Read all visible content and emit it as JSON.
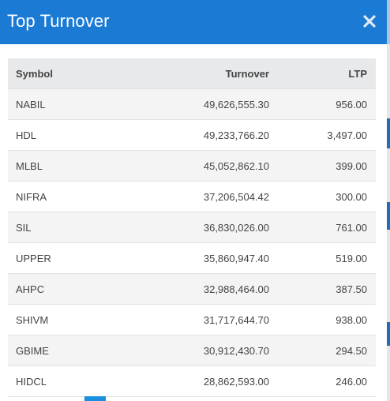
{
  "modal": {
    "title": "Top Turnover",
    "close_icon": "close-icon"
  },
  "colors": {
    "header": "#1a7ad4",
    "accent": "#1a8fdd"
  },
  "table": {
    "headers": {
      "symbol": "Symbol",
      "turnover": "Turnover",
      "ltp": "LTP"
    },
    "rows": [
      {
        "symbol": "NABIL",
        "turnover": "49,626,555.30",
        "ltp": "956.00"
      },
      {
        "symbol": "HDL",
        "turnover": "49,233,766.20",
        "ltp": "3,497.00"
      },
      {
        "symbol": "MLBL",
        "turnover": "45,052,862.10",
        "ltp": "399.00"
      },
      {
        "symbol": "NIFRA",
        "turnover": "37,206,504.42",
        "ltp": "300.00"
      },
      {
        "symbol": "SIL",
        "turnover": "36,830,026.00",
        "ltp": "761.00"
      },
      {
        "symbol": "UPPER",
        "turnover": "35,860,947.40",
        "ltp": "519.00"
      },
      {
        "symbol": "AHPC",
        "turnover": "32,988,464.00",
        "ltp": "387.50"
      },
      {
        "symbol": "SHIVM",
        "turnover": "31,717,644.70",
        "ltp": "938.00"
      },
      {
        "symbol": "GBIME",
        "turnover": "30,912,430.70",
        "ltp": "294.50"
      },
      {
        "symbol": "HIDCL",
        "turnover": "28,862,593.00",
        "ltp": "246.00"
      }
    ]
  }
}
